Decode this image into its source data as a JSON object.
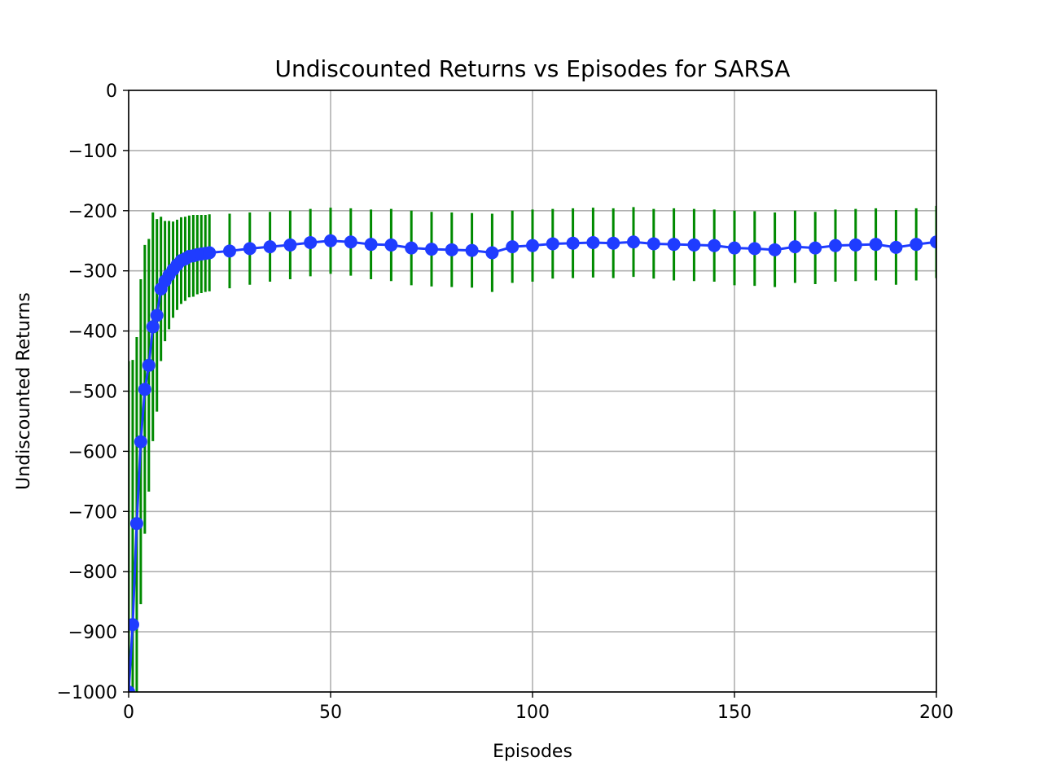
{
  "chart_data": {
    "type": "line",
    "title": "Undiscounted Returns vs Episodes for SARSA",
    "xlabel": "Episodes",
    "ylabel": "Undiscounted Returns",
    "xlim": [
      0,
      200
    ],
    "ylim": [
      -1000,
      0
    ],
    "xticks": [
      0,
      50,
      100,
      150,
      200
    ],
    "xtick_labels": [
      "0",
      "50",
      "100",
      "150",
      "200"
    ],
    "yticks": [
      0,
      -100,
      -200,
      -300,
      -400,
      -500,
      -600,
      -700,
      -800,
      -900,
      -1000
    ],
    "ytick_labels": [
      "0",
      "−100",
      "−200",
      "−300",
      "−400",
      "−500",
      "−600",
      "−700",
      "−800",
      "−900",
      "−1000"
    ],
    "grid": true,
    "legend": "none",
    "colors": {
      "line": "#1f3cff",
      "errorbar": "#008a00",
      "grid": "#b0b0b0"
    },
    "series": [
      {
        "x": [
          0,
          1,
          2,
          3,
          4,
          5,
          6,
          7,
          8,
          9,
          10,
          11,
          12,
          13,
          14,
          15,
          16,
          17,
          18,
          19,
          20,
          25,
          30,
          35,
          40,
          45,
          50,
          55,
          60,
          65,
          70,
          75,
          80,
          85,
          90,
          95,
          100,
          105,
          110,
          115,
          120,
          125,
          130,
          135,
          140,
          145,
          150,
          155,
          160,
          165,
          170,
          175,
          180,
          185,
          190,
          195,
          200
        ],
        "y": [
          -1000,
          -888,
          -720,
          -584,
          -497,
          -457,
          -393,
          -374,
          -330,
          -317,
          -307,
          -298,
          -290,
          -283,
          -280,
          -276,
          -275,
          -273,
          -272,
          -271,
          -270,
          -267,
          -263,
          -260,
          -257,
          -253,
          -250,
          -252,
          -256,
          -257,
          -262,
          -264,
          -265,
          -266,
          -270,
          -260,
          -258,
          -255,
          -254,
          -253,
          -254,
          -252,
          -255,
          -256,
          -257,
          -258,
          -262,
          -263,
          -265,
          -260,
          -262,
          -258,
          -257,
          -256,
          -261,
          -256,
          -252
        ],
        "yerr": [
          550,
          440,
          310,
          270,
          240,
          210,
          190,
          160,
          120,
          100,
          90,
          80,
          75,
          72,
          70,
          68,
          68,
          66,
          65,
          64,
          64,
          62,
          60,
          58,
          57,
          56,
          55,
          56,
          58,
          60,
          62,
          62,
          62,
          62,
          65,
          60,
          60,
          58,
          58,
          58,
          58,
          58,
          58,
          60,
          60,
          60,
          62,
          62,
          62,
          60,
          60,
          60,
          60,
          60,
          62,
          60,
          60
        ]
      }
    ]
  }
}
